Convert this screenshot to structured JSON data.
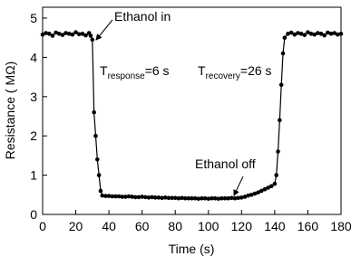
{
  "chart_data": {
    "type": "line",
    "x_label": "Time (s)",
    "y_label": "Resistance ( MΩ)",
    "xlim": [
      0,
      180
    ],
    "xticks": [
      0,
      20,
      40,
      60,
      80,
      100,
      120,
      140,
      160,
      180
    ],
    "ylim": [
      0,
      5
    ],
    "yticks": [
      0,
      1,
      2,
      3,
      4,
      5
    ],
    "annotations": {
      "ethanol_in": "Ethanol in",
      "ethanol_off": "Ethanol off",
      "response": {
        "symbol": "T",
        "sub": "response",
        "rest": "=6 s"
      },
      "recovery": {
        "symbol": "T",
        "sub": "recovery",
        "rest": "=26 s"
      }
    },
    "series": [
      {
        "color": "#000000",
        "x": [
          0,
          2,
          4,
          6,
          8,
          10,
          12,
          14,
          16,
          18,
          20,
          22,
          24,
          26,
          28,
          29,
          30,
          31,
          32,
          33,
          34,
          35,
          36,
          38,
          40,
          42,
          44,
          46,
          48,
          50,
          52,
          54,
          56,
          58,
          60,
          62,
          64,
          66,
          68,
          70,
          72,
          74,
          76,
          78,
          80,
          82,
          84,
          86,
          88,
          90,
          92,
          94,
          96,
          98,
          100,
          102,
          104,
          106,
          108,
          110,
          112,
          114,
          116,
          118,
          120,
          122,
          124,
          126,
          128,
          130,
          132,
          134,
          136,
          138,
          140,
          141,
          142,
          143,
          144,
          145,
          146,
          148,
          150,
          152,
          154,
          156,
          158,
          160,
          162,
          164,
          166,
          168,
          170,
          172,
          174,
          176,
          178,
          180
        ],
        "values": [
          4.58,
          4.62,
          4.6,
          4.55,
          4.63,
          4.6,
          4.57,
          4.62,
          4.6,
          4.58,
          4.64,
          4.59,
          4.6,
          4.56,
          4.62,
          4.55,
          4.45,
          2.6,
          2.0,
          1.4,
          1.0,
          0.6,
          0.48,
          0.47,
          0.47,
          0.46,
          0.46,
          0.46,
          0.45,
          0.45,
          0.46,
          0.45,
          0.44,
          0.44,
          0.45,
          0.44,
          0.43,
          0.44,
          0.43,
          0.43,
          0.42,
          0.43,
          0.42,
          0.42,
          0.42,
          0.41,
          0.42,
          0.41,
          0.41,
          0.41,
          0.41,
          0.4,
          0.41,
          0.41,
          0.4,
          0.41,
          0.41,
          0.4,
          0.41,
          0.41,
          0.41,
          0.42,
          0.41,
          0.42,
          0.43,
          0.45,
          0.48,
          0.5,
          0.53,
          0.56,
          0.6,
          0.64,
          0.68,
          0.72,
          0.78,
          1.0,
          1.6,
          2.4,
          3.3,
          4.1,
          4.5,
          4.6,
          4.63,
          4.58,
          4.62,
          4.6,
          4.57,
          4.64,
          4.6,
          4.58,
          4.62,
          4.6,
          4.56,
          4.63,
          4.6,
          4.62,
          4.58,
          4.6
        ]
      }
    ]
  }
}
